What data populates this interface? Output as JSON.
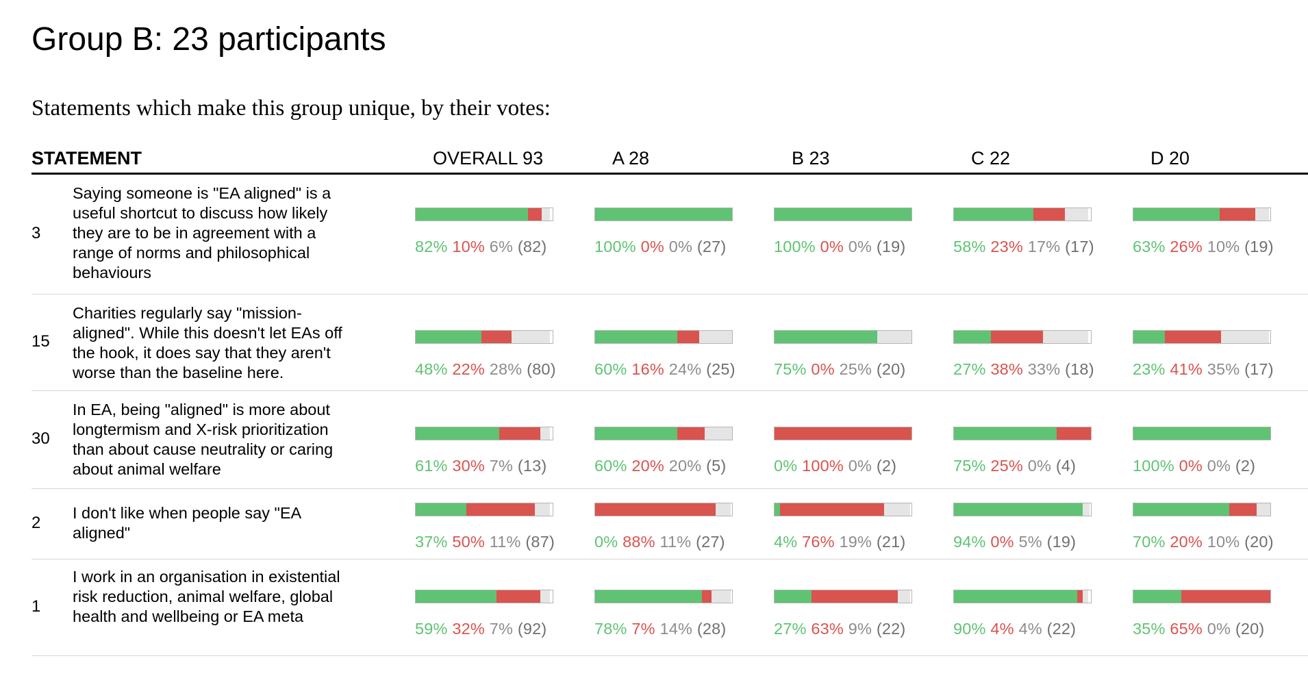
{
  "page": {
    "title": "Group B: 23 participants",
    "subtitle": "Statements which make this group unique, by their votes:"
  },
  "table": {
    "statement_header": "STATEMENT",
    "groups": [
      {
        "key": "overall",
        "label": "OVERALL 93"
      },
      {
        "key": "A",
        "label": "A 28"
      },
      {
        "key": "B",
        "label": "B 23"
      },
      {
        "key": "C",
        "label": "C 22"
      },
      {
        "key": "D",
        "label": "D 20"
      }
    ],
    "rows": [
      {
        "id": "3",
        "text": "Saying someone is \"EA aligned\" is a useful shortcut to discuss how likely they are to be in agreement with a range of norms and philosophical behaviours",
        "votes": [
          {
            "agree": 82,
            "disagree": 10,
            "pass": 6,
            "n": 82,
            "agree_label": "82%",
            "disagree_label": "10%",
            "pass_label": "6%",
            "count_label": "(82)"
          },
          {
            "agree": 100,
            "disagree": 0,
            "pass": 0,
            "n": 27,
            "agree_label": "100%",
            "disagree_label": "0%",
            "pass_label": "0%",
            "count_label": "(27)"
          },
          {
            "agree": 100,
            "disagree": 0,
            "pass": 0,
            "n": 19,
            "agree_label": "100%",
            "disagree_label": "0%",
            "pass_label": "0%",
            "count_label": "(19)"
          },
          {
            "agree": 58,
            "disagree": 23,
            "pass": 17,
            "n": 17,
            "agree_label": "58%",
            "disagree_label": "23%",
            "pass_label": "17%",
            "count_label": "(17)"
          },
          {
            "agree": 63,
            "disagree": 26,
            "pass": 10,
            "n": 19,
            "agree_label": "63%",
            "disagree_label": "26%",
            "pass_label": "10%",
            "count_label": "(19)"
          }
        ]
      },
      {
        "id": "15",
        "text": "Charities regularly say \"mission-aligned\". While this doesn't let EAs off the hook, it does say that they aren't worse than the baseline here.",
        "votes": [
          {
            "agree": 48,
            "disagree": 22,
            "pass": 28,
            "n": 80,
            "agree_label": "48%",
            "disagree_label": "22%",
            "pass_label": "28%",
            "count_label": "(80)"
          },
          {
            "agree": 60,
            "disagree": 16,
            "pass": 24,
            "n": 25,
            "agree_label": "60%",
            "disagree_label": "16%",
            "pass_label": "24%",
            "count_label": "(25)"
          },
          {
            "agree": 75,
            "disagree": 0,
            "pass": 25,
            "n": 20,
            "agree_label": "75%",
            "disagree_label": "0%",
            "pass_label": "25%",
            "count_label": "(20)"
          },
          {
            "agree": 27,
            "disagree": 38,
            "pass": 33,
            "n": 18,
            "agree_label": "27%",
            "disagree_label": "38%",
            "pass_label": "33%",
            "count_label": "(18)"
          },
          {
            "agree": 23,
            "disagree": 41,
            "pass": 35,
            "n": 17,
            "agree_label": "23%",
            "disagree_label": "41%",
            "pass_label": "35%",
            "count_label": "(17)"
          }
        ]
      },
      {
        "id": "30",
        "text": "In EA, being \"aligned\" is more about longtermism and X-risk prioritization than about cause neutrality or caring about animal welfare",
        "votes": [
          {
            "agree": 61,
            "disagree": 30,
            "pass": 7,
            "n": 13,
            "agree_label": "61%",
            "disagree_label": "30%",
            "pass_label": "7%",
            "count_label": "(13)"
          },
          {
            "agree": 60,
            "disagree": 20,
            "pass": 20,
            "n": 5,
            "agree_label": "60%",
            "disagree_label": "20%",
            "pass_label": "20%",
            "count_label": "(5)"
          },
          {
            "agree": 0,
            "disagree": 100,
            "pass": 0,
            "n": 2,
            "agree_label": "0%",
            "disagree_label": "100%",
            "pass_label": "0%",
            "count_label": "(2)"
          },
          {
            "agree": 75,
            "disagree": 25,
            "pass": 0,
            "n": 4,
            "agree_label": "75%",
            "disagree_label": "25%",
            "pass_label": "0%",
            "count_label": "(4)"
          },
          {
            "agree": 100,
            "disagree": 0,
            "pass": 0,
            "n": 2,
            "agree_label": "100%",
            "disagree_label": "0%",
            "pass_label": "0%",
            "count_label": "(2)"
          }
        ]
      },
      {
        "id": "2",
        "text": "I don't like when people say \"EA aligned\"",
        "votes": [
          {
            "agree": 37,
            "disagree": 50,
            "pass": 11,
            "n": 87,
            "agree_label": "37%",
            "disagree_label": "50%",
            "pass_label": "11%",
            "count_label": "(87)"
          },
          {
            "agree": 0,
            "disagree": 88,
            "pass": 11,
            "n": 27,
            "agree_label": "0%",
            "disagree_label": "88%",
            "pass_label": "11%",
            "count_label": "(27)"
          },
          {
            "agree": 4,
            "disagree": 76,
            "pass": 19,
            "n": 21,
            "agree_label": "4%",
            "disagree_label": "76%",
            "pass_label": "19%",
            "count_label": "(21)"
          },
          {
            "agree": 94,
            "disagree": 0,
            "pass": 5,
            "n": 19,
            "agree_label": "94%",
            "disagree_label": "0%",
            "pass_label": "5%",
            "count_label": "(19)"
          },
          {
            "agree": 70,
            "disagree": 20,
            "pass": 10,
            "n": 20,
            "agree_label": "70%",
            "disagree_label": "20%",
            "pass_label": "10%",
            "count_label": "(20)"
          }
        ]
      },
      {
        "id": "1",
        "text": "I work in an organisation in existential risk reduction, animal welfare, global health and wellbeing or EA meta",
        "votes": [
          {
            "agree": 59,
            "disagree": 32,
            "pass": 7,
            "n": 92,
            "agree_label": "59%",
            "disagree_label": "32%",
            "pass_label": "7%",
            "count_label": "(92)"
          },
          {
            "agree": 78,
            "disagree": 7,
            "pass": 14,
            "n": 28,
            "agree_label": "78%",
            "disagree_label": "7%",
            "pass_label": "14%",
            "count_label": "(28)"
          },
          {
            "agree": 27,
            "disagree": 63,
            "pass": 9,
            "n": 22,
            "agree_label": "27%",
            "disagree_label": "63%",
            "pass_label": "9%",
            "count_label": "(22)"
          },
          {
            "agree": 90,
            "disagree": 4,
            "pass": 4,
            "n": 22,
            "agree_label": "90%",
            "disagree_label": "4%",
            "pass_label": "4%",
            "count_label": "(22)"
          },
          {
            "agree": 35,
            "disagree": 65,
            "pass": 0,
            "n": 20,
            "agree_label": "35%",
            "disagree_label": "65%",
            "pass_label": "0%",
            "count_label": "(20)"
          }
        ]
      }
    ]
  },
  "colors": {
    "agree": "#5fc373",
    "disagree": "#d9534f",
    "pass": "#e5e5e5"
  }
}
